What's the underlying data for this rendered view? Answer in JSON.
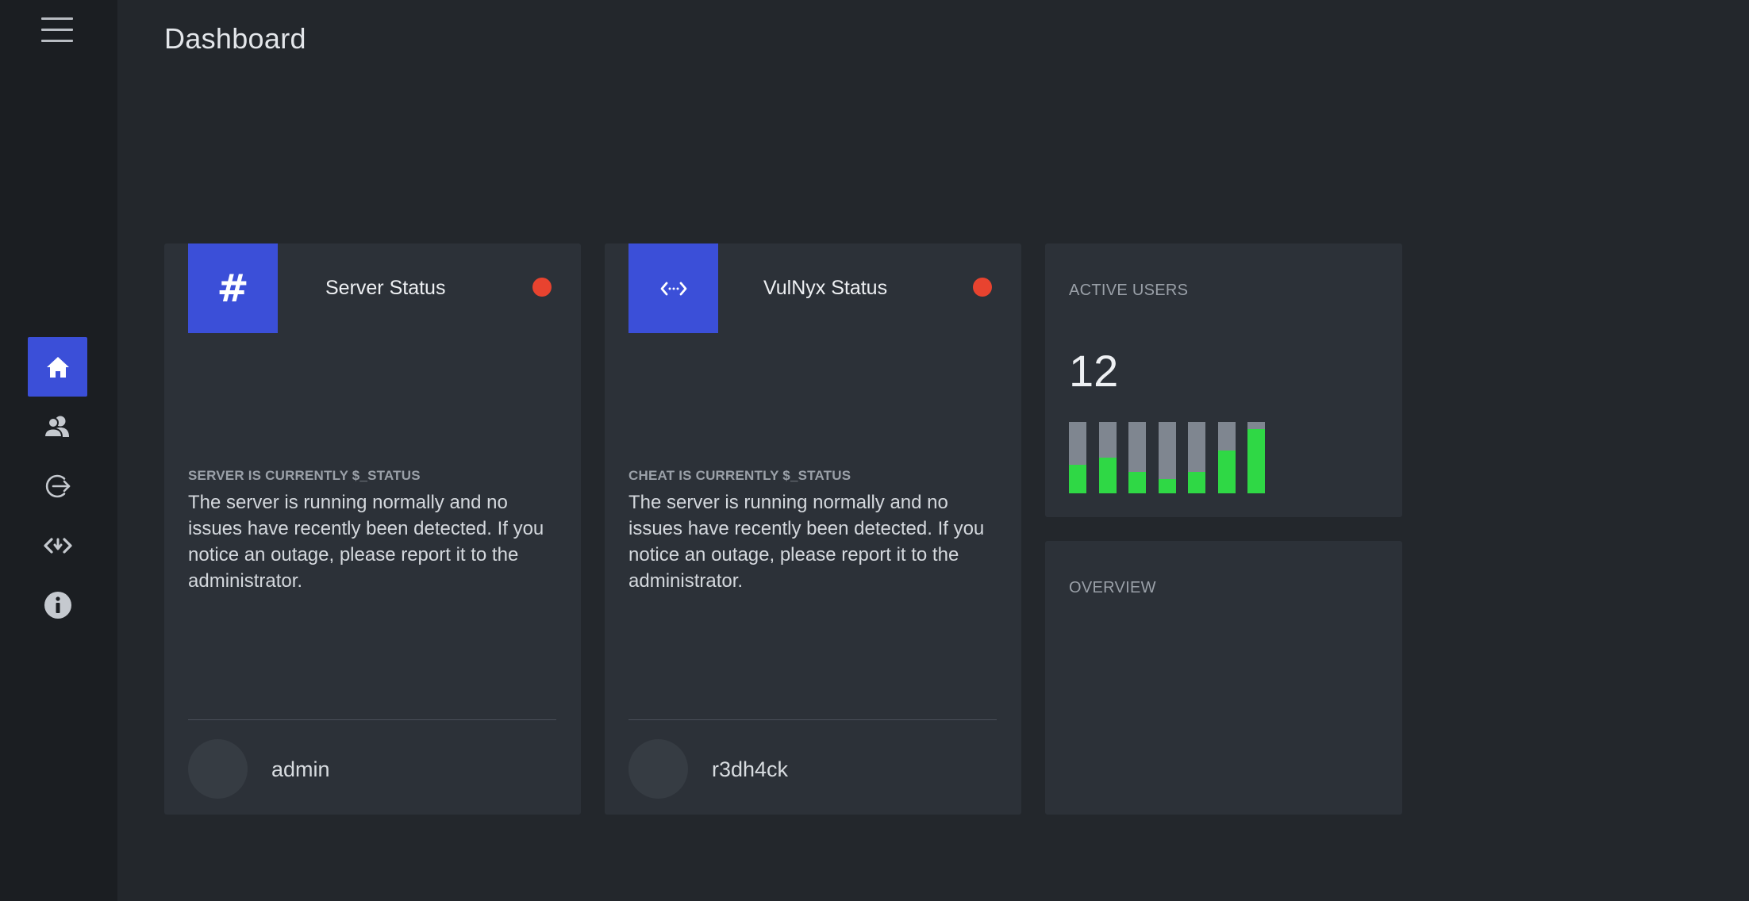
{
  "page": {
    "title": "Dashboard"
  },
  "sidebar": {
    "menu_icon": "hamburger-menu-icon",
    "items": [
      {
        "icon": "home-icon",
        "active": true
      },
      {
        "icon": "users-icon",
        "active": false
      },
      {
        "icon": "logout-icon",
        "active": false
      },
      {
        "icon": "code-icon",
        "active": false
      },
      {
        "icon": "info-icon",
        "active": false
      }
    ]
  },
  "server_card": {
    "icon": "hash-icon",
    "icon_glyph": "#",
    "title": "Server Status",
    "status_color": "#e8432f",
    "status_label": "SERVER IS CURRENTLY $_STATUS",
    "description": "The server is running normally and no issues have recently been detected. If you notice an outage, please report it to the administrator.",
    "user": "admin"
  },
  "vulnyx_card": {
    "icon": "code-arrows-icon",
    "title": "VulNyx Status",
    "status_color": "#e8432f",
    "status_label": "CHEAT IS CURRENTLY $_STATUS",
    "description": "The server is running normally and no issues have recently been detected. If you notice an outage, please report it to the administrator.",
    "user": "r3dh4ck"
  },
  "active_users": {
    "heading": "ACTIVE USERS",
    "count": "12",
    "bar_fill_color": "#2fd845",
    "bar_track_color": "#7f8690",
    "bar_levels": [
      0.4,
      0.5,
      0.3,
      0.2,
      0.3,
      0.6,
      0.9
    ]
  },
  "overview": {
    "heading": "OVERVIEW"
  },
  "colors": {
    "accent": "#3b4fd8",
    "background": "#23272c",
    "sidebar": "#1b1e22",
    "card": "#2c3138",
    "status_red": "#e8432f",
    "bar_green": "#2fd845"
  }
}
